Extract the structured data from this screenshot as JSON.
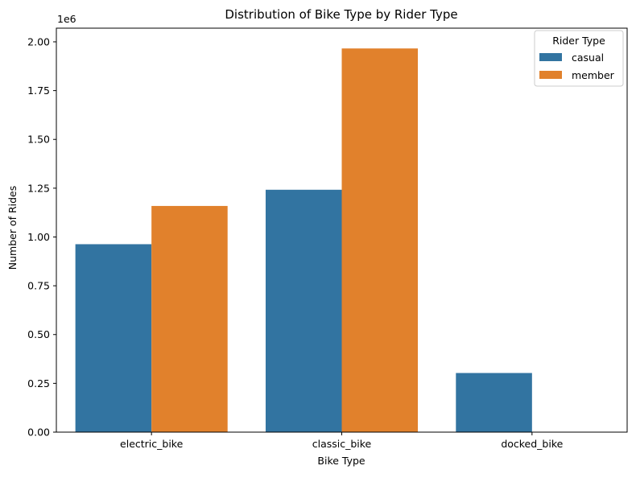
{
  "chart_data": {
    "type": "bar",
    "title": "Distribution of Bike Type by Rider Type",
    "xlabel": "Bike Type",
    "ylabel": "Number of Rides",
    "offset_label": "1e6",
    "categories": [
      "electric_bike",
      "classic_bike",
      "docked_bike"
    ],
    "series": [
      {
        "name": "casual",
        "color": "#3274a1",
        "values": [
          0.963,
          1.242,
          0.303
        ]
      },
      {
        "name": "member",
        "color": "#e1812c",
        "values": [
          1.159,
          1.966,
          0
        ]
      }
    ],
    "ylim": [
      0,
      2.07
    ],
    "yticks": [
      0,
      0.25,
      0.5,
      0.75,
      1.0,
      1.25,
      1.5,
      1.75,
      2.0
    ],
    "ytick_labels": [
      "0.00",
      "0.25",
      "0.50",
      "0.75",
      "1.00",
      "1.25",
      "1.50",
      "1.75",
      "2.00"
    ],
    "legend": {
      "title": "Rider Type",
      "position": "top-right"
    },
    "grid": false
  }
}
